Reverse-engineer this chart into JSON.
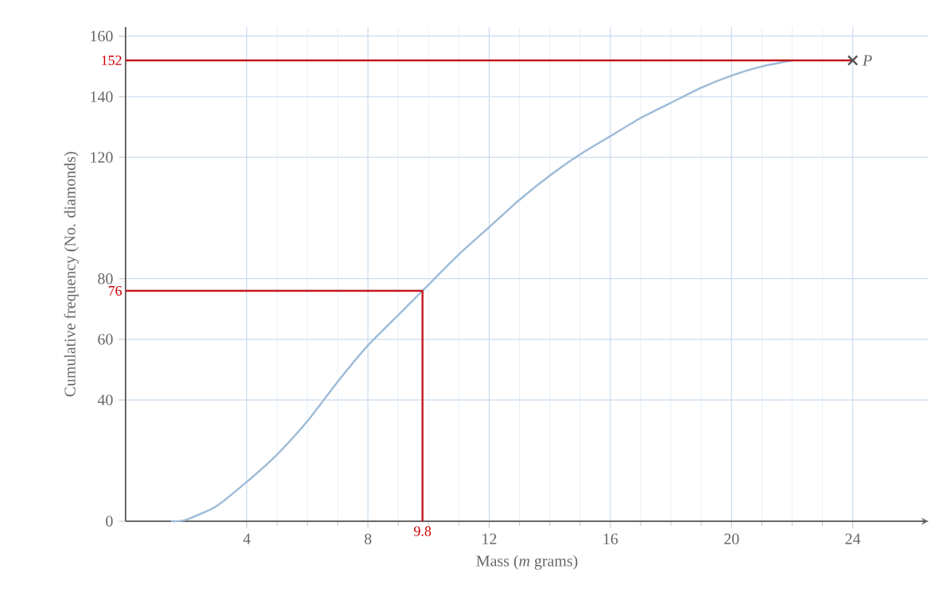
{
  "chart_data": {
    "type": "line",
    "xlabel": "Mass (*m* grams)",
    "ylabel": "Cumulative frequency (No. diamonds)",
    "xlim": [
      0,
      26.5
    ],
    "ylim": [
      0,
      163
    ],
    "xticks": [
      4,
      8,
      12,
      16,
      20,
      24
    ],
    "yticks": [
      0,
      40,
      60,
      80,
      120,
      140,
      160
    ],
    "grid": true,
    "series": [
      {
        "color": "#9dbbd8",
        "x": [
          1.5,
          2,
          3,
          4,
          5,
          6,
          7,
          8,
          9,
          9.8,
          11,
          12,
          13,
          14,
          15,
          16,
          17,
          18,
          19,
          20,
          21,
          22
        ],
        "values": [
          0,
          0.5,
          5,
          13,
          22,
          33,
          46,
          58,
          68,
          76,
          88,
          97,
          106,
          114,
          121,
          127,
          133,
          138,
          143,
          147,
          150,
          152
        ]
      },
      {
        "type": "line",
        "color": "#c4161c",
        "x": [
          0,
          24
        ],
        "values": [
          152,
          152
        ]
      },
      {
        "type": "line",
        "color": "#c4161c",
        "x": [
          0,
          9.8,
          9.8
        ],
        "values": [
          76,
          76,
          0
        ]
      },
      {
        "type": "scatter",
        "color": "#555555",
        "marker": "cross",
        "x": [
          24
        ],
        "values": [
          152
        ]
      }
    ],
    "annotations": [
      {
        "text": "P",
        "x": 24,
        "y": 152
      },
      {
        "text": "152",
        "x": 0,
        "y": 152
      },
      {
        "text": "76",
        "x": 0,
        "y": 76
      },
      {
        "text": "9.8",
        "x": 9.8,
        "y": 0
      }
    ]
  }
}
